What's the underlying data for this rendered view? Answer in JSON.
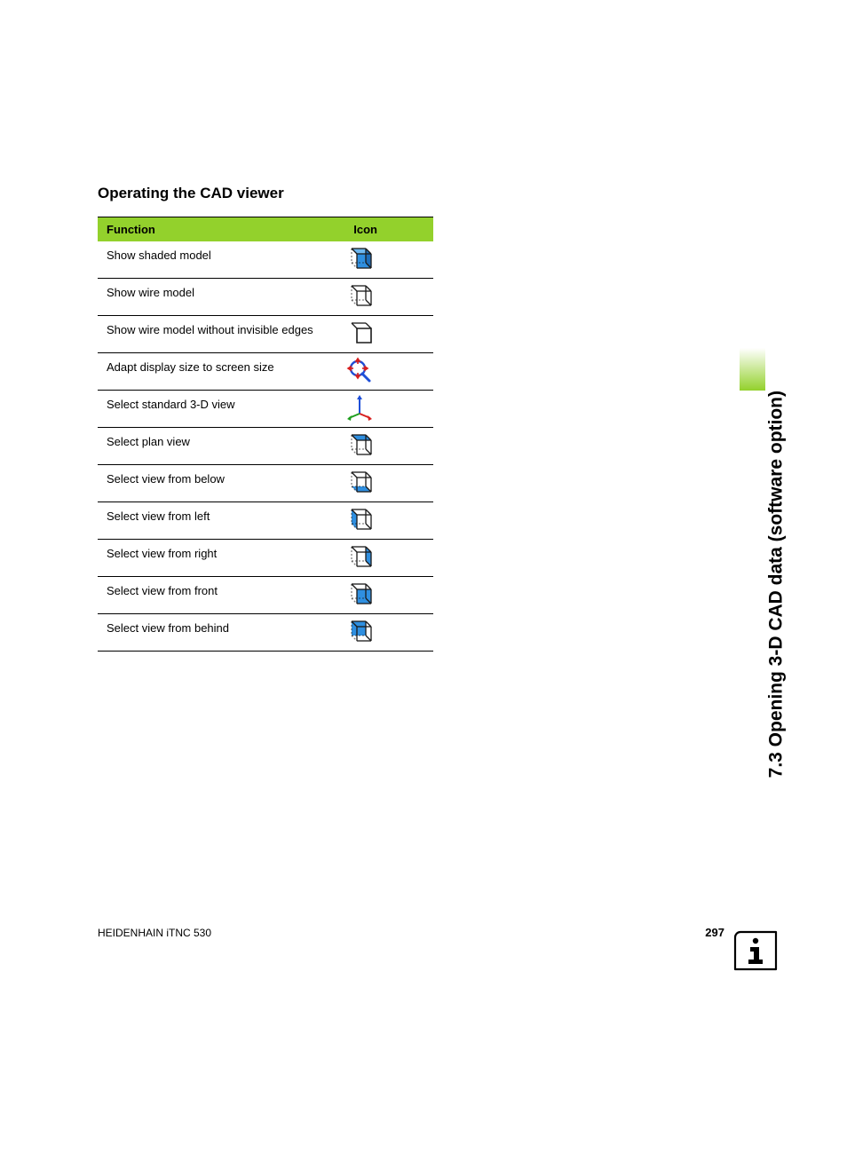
{
  "heading": "Operating the CAD viewer",
  "side_title": "7.3 Opening 3-D CAD data (software option)",
  "colors": {
    "header_bg": "#93d12c",
    "cube_fill": "#2f8fe0",
    "cube_light": "#6db7ef",
    "cube_dark": "#1f6db8",
    "wire_stroke": "#1a1a1a",
    "axis_red": "#d81e1e",
    "axis_green": "#1e9e1e",
    "axis_blue": "#1e4fd8",
    "magnifier": "#1e4fd8",
    "arrows": "#d81e1e"
  },
  "table": {
    "head_function": "Function",
    "head_icon": "Icon",
    "rows": [
      {
        "label": "Show shaded model",
        "icon": "shaded"
      },
      {
        "label": "Show wire model",
        "icon": "wire"
      },
      {
        "label": "Show wire model without invisible edges",
        "icon": "wire-front"
      },
      {
        "label": "Adapt display size to screen size",
        "icon": "zoom-fit"
      },
      {
        "label": "Select standard 3-D view",
        "icon": "axes"
      },
      {
        "label": "Select plan view",
        "icon": "face-top"
      },
      {
        "label": "Select view from below",
        "icon": "face-bottom"
      },
      {
        "label": "Select view from left",
        "icon": "face-left"
      },
      {
        "label": "Select view from right",
        "icon": "face-right"
      },
      {
        "label": "Select view from front",
        "icon": "face-front"
      },
      {
        "label": "Select view from behind",
        "icon": "face-back"
      }
    ]
  },
  "footer_left": "HEIDENHAIN iTNC 530",
  "footer_page": "297"
}
